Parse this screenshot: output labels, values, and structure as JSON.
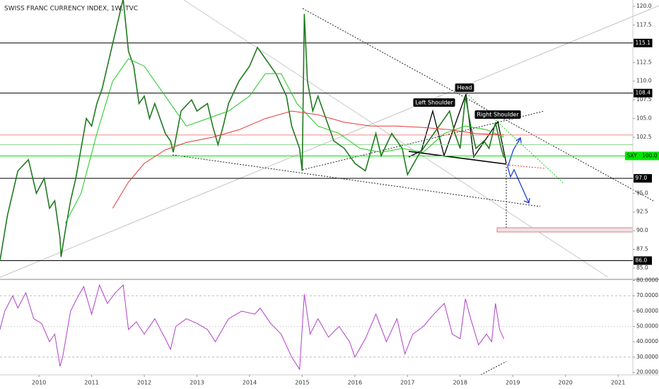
{
  "chart_data": [
    {
      "type": "line",
      "title": "SWISS FRANC CURRENCY INDEX, 1W, TVC",
      "xlim": [
        2009.26,
        2021.28
      ],
      "ylim": [
        83.49,
        120.85
      ],
      "yticks": [
        {
          "value": 85,
          "label": "85.0"
        },
        {
          "value": 87.5,
          "label": "87.5"
        },
        {
          "value": 90,
          "label": "90.0"
        },
        {
          "value": 92.5,
          "label": "92.5"
        },
        {
          "value": 95,
          "label": "95.0"
        },
        {
          "value": 102.5,
          "label": "102.5"
        },
        {
          "value": 105,
          "label": "105.0"
        },
        {
          "value": 107.5,
          "label": "107.5"
        },
        {
          "value": 110,
          "label": "110.0"
        },
        {
          "value": 112.5,
          "label": "112.5"
        },
        {
          "value": 117.5,
          "label": "117.5"
        },
        {
          "value": 120,
          "label": "120.0"
        }
      ],
      "levels": [
        {
          "value": 115.1,
          "label": "115.1",
          "color": "#000000"
        },
        {
          "value": 108.4,
          "label": "108.4",
          "color": "#000000"
        },
        {
          "value": 97.0,
          "label": "97.0",
          "color": "#000000"
        },
        {
          "value": 86.0,
          "label": "86.0",
          "color": "#000000"
        },
        {
          "value": 102.8,
          "color": "#f28b82"
        },
        {
          "value": 101.5,
          "color": "#8fd18f"
        },
        {
          "value": 100.0,
          "label": "SXY · 100.0",
          "color": "#00e600"
        }
      ],
      "annotations": [
        "Left Shoulder",
        "Head",
        "Right Shoulder"
      ],
      "series": [
        {
          "color": "#1f7a1f",
          "x": [
            2009.26,
            2009.4,
            2009.6,
            2009.8,
            2009.95,
            2010.1,
            2010.2,
            2010.3,
            2010.4,
            2010.42,
            2010.5,
            2010.6,
            2010.7,
            2010.8,
            2010.9,
            2011.0,
            2011.1,
            2011.2,
            2011.3,
            2011.4,
            2011.5,
            2011.6,
            2011.7,
            2011.8,
            2011.9,
            2012.0,
            2012.1,
            2012.2,
            2012.3,
            2012.4,
            2012.5,
            2012.55,
            2012.7,
            2012.9,
            2013.0,
            2013.2,
            2013.3,
            2013.4,
            2013.5,
            2013.6,
            2013.8,
            2014.0,
            2014.15,
            2014.3,
            2014.5,
            2014.7,
            2014.8,
            2014.95,
            2015.0,
            2015.04,
            2015.1,
            2015.2,
            2015.3,
            2015.4,
            2015.6,
            2015.8,
            2016.0,
            2016.2,
            2016.4,
            2016.5,
            2016.7,
            2016.9,
            2017.0,
            2017.2,
            2017.4,
            2017.6,
            2017.8,
            2017.9,
            2018.0,
            2018.1,
            2018.2,
            2018.3,
            2018.45,
            2018.55,
            2018.67,
            2018.78,
            2018.83
          ],
          "values": [
            86,
            92,
            98,
            99.5,
            95,
            97,
            93,
            94,
            89,
            86.5,
            90,
            94,
            97,
            101,
            105,
            104,
            107,
            109,
            112,
            115,
            118,
            121,
            114,
            112,
            107,
            108,
            105,
            107,
            105,
            103,
            102,
            100.5,
            106,
            107.5,
            106,
            107,
            104,
            101.5,
            104,
            107,
            110,
            112,
            114.5,
            113,
            111,
            108,
            104,
            101,
            98,
            119,
            110,
            106,
            108,
            106,
            102,
            101,
            99,
            98,
            103,
            100,
            103,
            101,
            97.5,
            100,
            102,
            104,
            106,
            103,
            101,
            108,
            104,
            101,
            102,
            101,
            104.5,
            101,
            99.8
          ]
        },
        {
          "color": "#22c722",
          "x": [
            2010.5,
            2010.8,
            2011.1,
            2011.4,
            2011.7,
            2012.0,
            2012.4,
            2012.8,
            2013.2,
            2013.6,
            2014.0,
            2014.3,
            2014.6,
            2014.9,
            2015.3,
            2015.7,
            2016.1,
            2016.5,
            2016.9,
            2017.3,
            2017.7,
            2018.1,
            2018.5,
            2018.83
          ],
          "values": [
            91,
            95,
            103,
            110,
            113,
            112,
            108,
            104,
            105,
            106,
            108,
            111,
            111,
            107,
            104,
            103,
            101,
            100.5,
            101,
            100.5,
            103,
            104,
            103.5,
            102.5
          ]
        },
        {
          "color": "#e53935",
          "x": [
            2011.4,
            2011.7,
            2012.0,
            2012.4,
            2012.8,
            2013.3,
            2013.8,
            2014.3,
            2014.8,
            2015.3,
            2015.8,
            2016.3,
            2016.8,
            2017.3,
            2017.8,
            2018.3,
            2018.83
          ],
          "values": [
            93,
            96.5,
            99,
            100.8,
            101.8,
            102.5,
            103.5,
            105,
            106,
            105.5,
            104.5,
            104,
            104,
            103.8,
            103.5,
            103,
            102.8
          ]
        }
      ]
    },
    {
      "type": "line",
      "xlim": [
        2009.26,
        2021.28
      ],
      "ylim": [
        18.4,
        80.7
      ],
      "xticks": [
        2010,
        2011,
        2012,
        2013,
        2014,
        2015,
        2016,
        2017,
        2018,
        2019,
        2020,
        2021
      ],
      "yticks": [
        {
          "value": 20,
          "label": "20.0000"
        },
        {
          "value": 30,
          "label": "30.0000"
        },
        {
          "value": 40,
          "label": "40.0000"
        },
        {
          "value": 50,
          "label": "50.0000"
        },
        {
          "value": 60,
          "label": "60.0000"
        },
        {
          "value": 70,
          "label": "70.0000"
        },
        {
          "value": 80,
          "label": "80.0000"
        }
      ],
      "series": [
        {
          "color": "#b03fc9",
          "x": [
            2009.26,
            2009.35,
            2009.5,
            2009.6,
            2009.75,
            2009.9,
            2010.05,
            2010.2,
            2010.3,
            2010.4,
            2010.45,
            2010.6,
            2010.75,
            2010.85,
            2011.0,
            2011.15,
            2011.3,
            2011.45,
            2011.6,
            2011.7,
            2011.85,
            2012.0,
            2012.2,
            2012.4,
            2012.5,
            2012.6,
            2012.8,
            2013.0,
            2013.2,
            2013.35,
            2013.6,
            2013.85,
            2014.1,
            2014.2,
            2014.4,
            2014.6,
            2014.8,
            2014.95,
            2015.04,
            2015.15,
            2015.3,
            2015.5,
            2015.7,
            2015.9,
            2016.0,
            2016.2,
            2016.4,
            2016.6,
            2016.8,
            2016.95,
            2017.1,
            2017.3,
            2017.5,
            2017.7,
            2017.85,
            2018.0,
            2018.1,
            2018.2,
            2018.35,
            2018.5,
            2018.6,
            2018.67,
            2018.75,
            2018.83
          ],
          "values": [
            48,
            60,
            70,
            62,
            72,
            55,
            52,
            40,
            45,
            24,
            30,
            60,
            70,
            76,
            58,
            77,
            65,
            72,
            77,
            48,
            53,
            45,
            55,
            42,
            35,
            50,
            55,
            52,
            48,
            40,
            55,
            60,
            58,
            62,
            52,
            45,
            30,
            22,
            71,
            45,
            55,
            43,
            50,
            40,
            30,
            42,
            58,
            40,
            55,
            32,
            45,
            50,
            58,
            65,
            45,
            42,
            68,
            55,
            38,
            45,
            40,
            65,
            48,
            42
          ]
        }
      ]
    }
  ]
}
